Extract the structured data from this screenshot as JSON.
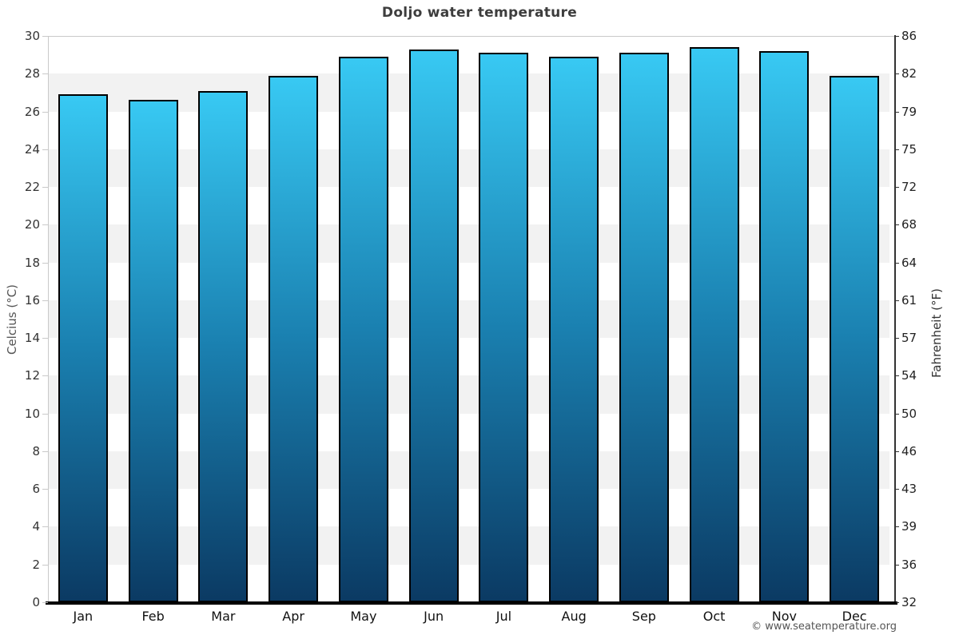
{
  "page": {
    "footer": "© www.seatemperature.org"
  },
  "chart_data": {
    "type": "bar",
    "title": "Doljo water temperature",
    "categories": [
      "Jan",
      "Feb",
      "Mar",
      "Apr",
      "May",
      "Jun",
      "Jul",
      "Aug",
      "Sep",
      "Oct",
      "Nov",
      "Dec"
    ],
    "values": [
      26.9,
      26.6,
      27.1,
      27.9,
      28.9,
      29.3,
      29.1,
      28.9,
      29.1,
      29.4,
      29.2,
      27.9
    ],
    "series_name": "Water temperature",
    "xlabel": "",
    "ylabel_left": "Celcius (°C)",
    "ylabel_right": "Fahrenheit (°F)",
    "ylim": [
      0,
      30
    ],
    "ytick_step_celsius": 2,
    "yticks_celsius": [
      0,
      2,
      4,
      6,
      8,
      10,
      12,
      14,
      16,
      18,
      20,
      22,
      24,
      26,
      28,
      30
    ],
    "yticks_fahrenheit": [
      32,
      36,
      39,
      43,
      46,
      50,
      54,
      57,
      61,
      64,
      68,
      72,
      75,
      79,
      82,
      86
    ],
    "legend": "none",
    "grid": "alternating horizontal bands",
    "colors": {
      "bar_gradient_top": "#38c9f3",
      "bar_gradient_mid": "#1a80b0",
      "bar_gradient_bottom": "#0b3a63",
      "bar_border": "#000000",
      "band_gray": "#f2f2f2",
      "band_white": "#ffffff",
      "axis_light": "#c9c9c9",
      "axis_dark": "#333333",
      "baseline": "#000000",
      "title": "#3d3d3d",
      "tick_left": "#333333",
      "tick_right": "#222222",
      "footer": "#555555"
    }
  }
}
